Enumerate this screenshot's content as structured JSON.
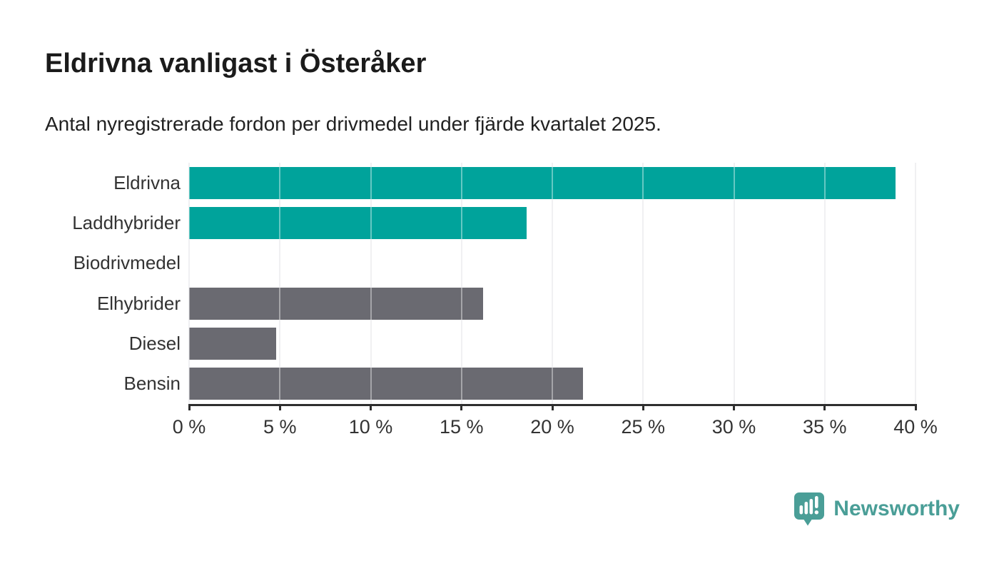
{
  "header": {
    "title": "Eldrivna vanligast i Österåker",
    "subtitle": "Antal nyregistrerade fordon per drivmedel under fjärde kvartalet 2025."
  },
  "chart_data": {
    "type": "bar",
    "orientation": "horizontal",
    "title": "Eldrivna vanligast i Österåker",
    "subtitle": "Antal nyregistrerade fordon per drivmedel under fjärde kvartalet 2025.",
    "categories": [
      "Eldrivna",
      "Laddhybrider",
      "Biodrivmedel",
      "Elhybrider",
      "Diesel",
      "Bensin"
    ],
    "values": [
      38.9,
      18.6,
      0,
      16.2,
      4.8,
      21.7
    ],
    "unit": "%",
    "bar_colors": [
      "#00a39b",
      "#00a39b",
      "#6a6a71",
      "#6a6a71",
      "#6a6a71",
      "#6a6a71"
    ],
    "highlight_color": "#00a39b",
    "base_color": "#6a6a71",
    "x_ticks": [
      "0 %",
      "5 %",
      "10 %",
      "15 %",
      "20 %",
      "25 %",
      "30 %",
      "35 %",
      "40 %"
    ],
    "x_tick_values": [
      0,
      5,
      10,
      15,
      20,
      25,
      30,
      35,
      40
    ],
    "xlim": [
      0,
      40
    ],
    "grid": "vertical",
    "gridline_color": "#e7e7e9",
    "axis_color": "#2e2e2e",
    "legend": "none"
  },
  "footer": {
    "brand": "Newsworthy",
    "brand_color": "#4a9e97",
    "logo_icon": "bar-chart-speech-bubble"
  }
}
